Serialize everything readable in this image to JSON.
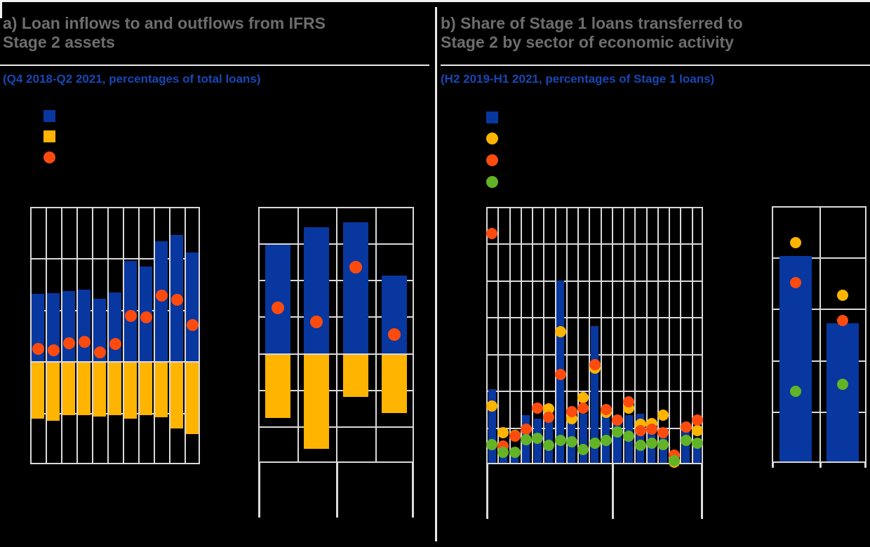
{
  "figure": {
    "background_color": "#000000",
    "note": "Axis tick labels, legend label texts and x-axis category labels are not visible in the image (black text on black background); series values below are estimated in horizontal-gridline units read from the plots.",
    "panel_a": {
      "title_line1": "a) Loan inflows to and outflows from IFRS",
      "title_line2": "Stage 2 assets",
      "subtitle": "(Q4 2018-Q2 2021, percentages of total loans)",
      "legend_markers": [
        {
          "shape": "square",
          "color_key": "blue"
        },
        {
          "shape": "square",
          "color_key": "yellow"
        },
        {
          "shape": "circle",
          "color_key": "orange"
        }
      ]
    },
    "panel_b": {
      "title_line1": "b) Share of Stage 1 loans transferred to",
      "title_line2": "Stage 2 by sector of economic activity",
      "subtitle": "(H2 2019-H1 2021, percentages of Stage 1 loans)",
      "legend_markers": [
        {
          "shape": "square",
          "color_key": "blue"
        },
        {
          "shape": "circle",
          "color_key": "yellow"
        },
        {
          "shape": "circle",
          "color_key": "orange"
        },
        {
          "shape": "circle",
          "color_key": "green"
        }
      ]
    }
  },
  "palette": {
    "blue": "#08379f",
    "yellow": "#ffb400",
    "orange": "#fd4b0e",
    "green": "#63b327",
    "gridline": "#d9d9d9",
    "title_gray": "#6d6d6d",
    "subtitle_blue": "#1747b4"
  },
  "chart_data": [
    {
      "id": "a_quarterly",
      "panel": "a",
      "type": "bar",
      "n_categories": 11,
      "x_tick_labels_visible": false,
      "ylim": [
        -2,
        3
      ],
      "units": "gridline units (axis unlabeled)",
      "series": [
        {
          "name": "blue-bar",
          "kind": "bar",
          "color_key": "blue",
          "values": [
            1.31,
            1.32,
            1.36,
            1.39,
            1.21,
            1.34,
            1.95,
            1.84,
            2.33,
            2.46,
            2.11
          ]
        },
        {
          "name": "yellow-bar",
          "kind": "bar",
          "color_key": "yellow",
          "values": [
            -1.12,
            -1.15,
            -1.05,
            -1.04,
            -1.07,
            -1.05,
            -1.11,
            -1.04,
            -1.09,
            -1.3,
            -1.41
          ]
        },
        {
          "name": "orange-dot",
          "kind": "scatter",
          "color_key": "orange",
          "values": [
            0.24,
            0.22,
            0.35,
            0.38,
            0.17,
            0.33,
            0.88,
            0.86,
            1.28,
            1.19,
            0.7
          ]
        }
      ]
    },
    {
      "id": "a_semiannual",
      "panel": "a",
      "type": "bar",
      "n_categories": 4,
      "x_tick_labels_visible": false,
      "ylim": [
        -3,
        4
      ],
      "units": "gridline units (axis unlabeled)",
      "series": [
        {
          "name": "blue-bar",
          "kind": "bar",
          "color_key": "blue",
          "values": [
            2.96,
            3.45,
            3.57,
            2.13
          ]
        },
        {
          "name": "yellow-bar",
          "kind": "bar",
          "color_key": "yellow",
          "values": [
            -1.77,
            -2.62,
            -1.2,
            -1.64
          ]
        },
        {
          "name": "orange-dot",
          "kind": "scatter",
          "color_key": "orange",
          "values": [
            1.23,
            0.86,
            2.36,
            0.51
          ]
        }
      ]
    },
    {
      "id": "b_sectors",
      "panel": "b",
      "type": "bar",
      "n_categories": 19,
      "x_tick_labels_visible": false,
      "group_separator_after_column": 11,
      "ylim": [
        0,
        7
      ],
      "units": "gridline units (axis unlabeled)",
      "series": [
        {
          "name": "blue-bar",
          "kind": "bar",
          "color_key": "blue",
          "values": [
            2.04,
            0.55,
            0.45,
            1.34,
            1.24,
            1.22,
            4.99,
            1.15,
            1.37,
            3.75,
            1.4,
            1.34,
            1.34,
            1.37,
            0.86,
            0.8,
            0.12,
            1.15,
            0.7
          ]
        },
        {
          "name": "yellow-dot",
          "kind": "scatter",
          "color_key": "yellow",
          "values": [
            1.59,
            0.86,
            0.78,
            null,
            null,
            1.5,
            3.6,
            1.24,
            1.81,
            2.61,
            1.41,
            null,
            1.53,
            1.08,
            1.11,
            1.34,
            0.05,
            null,
            0.92
          ]
        },
        {
          "name": "orange-dot",
          "kind": "scatter",
          "color_key": "orange",
          "values": [
            6.28,
            0.5,
            0.76,
            0.95,
            1.53,
            1.27,
            2.45,
            1.43,
            1.53,
            2.7,
            1.48,
            1.21,
            1.69,
            0.91,
            0.95,
            0.86,
            0.25,
            1.02,
            1.21
          ]
        },
        {
          "name": "green-dot",
          "kind": "scatter",
          "color_key": "green",
          "values": [
            0.54,
            0.33,
            0.32,
            0.67,
            0.7,
            0.51,
            0.64,
            0.61,
            0.41,
            0.57,
            0.64,
            0.88,
            0.76,
            0.51,
            0.57,
            0.54,
            0.1,
            0.64,
            0.57
          ]
        }
      ]
    },
    {
      "id": "b_aggregate",
      "panel": "b",
      "type": "bar",
      "n_categories": 2,
      "x_tick_labels_visible": false,
      "ylim": [
        0,
        5
      ],
      "units": "gridline units (axis unlabeled)",
      "series": [
        {
          "name": "blue-bar",
          "kind": "bar",
          "color_key": "blue",
          "values": [
            4.03,
            2.72
          ]
        },
        {
          "name": "yellow-dot",
          "kind": "scatter",
          "color_key": "yellow",
          "values": [
            4.29,
            3.26
          ]
        },
        {
          "name": "orange-dot",
          "kind": "scatter",
          "color_key": "orange",
          "values": [
            3.51,
            2.78
          ]
        },
        {
          "name": "green-dot",
          "kind": "scatter",
          "color_key": "green",
          "values": [
            1.4,
            1.53
          ]
        }
      ]
    }
  ]
}
